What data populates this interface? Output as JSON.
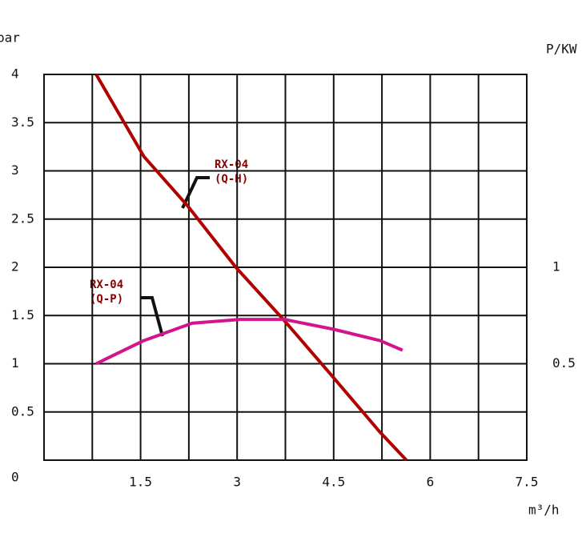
{
  "chart_data": {
    "type": "line",
    "y_label": "bar",
    "y2_label": "P/KW",
    "x_label": "m³/h",
    "xlim": [
      0,
      7.5
    ],
    "xticks": [
      1.5,
      3,
      4.5,
      6,
      7.5
    ],
    "x_minor_ticks": [
      0.75,
      2.25,
      3.75,
      5.25,
      6.75
    ],
    "ylim": [
      0,
      4
    ],
    "yticks": [
      0,
      0.5,
      1,
      1.5,
      2,
      2.5,
      3,
      3.5,
      4
    ],
    "y2lim": [
      0,
      2
    ],
    "y2ticks": [
      0.5,
      1
    ],
    "grid": true,
    "series": [
      {
        "name": "RX-04 (Q-H)",
        "color": "#b00000",
        "x": [
          0.81,
          1.55,
          2.24,
          2.98,
          3.73,
          4.48,
          5.22,
          5.63
        ],
        "values": [
          4.0,
          3.15,
          2.63,
          2.0,
          1.45,
          0.87,
          0.29,
          0
        ]
      },
      {
        "name": "RX-04 (Q-P)",
        "color": "#d4148c",
        "axis": "y2",
        "x": [
          0.81,
          1.55,
          2.3,
          3.05,
          3.73,
          4.48,
          5.22,
          5.57
        ],
        "values": [
          0.5,
          0.62,
          0.71,
          0.73,
          0.73,
          0.68,
          0.62,
          0.57
        ]
      }
    ],
    "annotations": [
      [
        "RX-04",
        "(Q-H)"
      ],
      [
        "RX-04",
        "(Q-P)"
      ]
    ]
  }
}
